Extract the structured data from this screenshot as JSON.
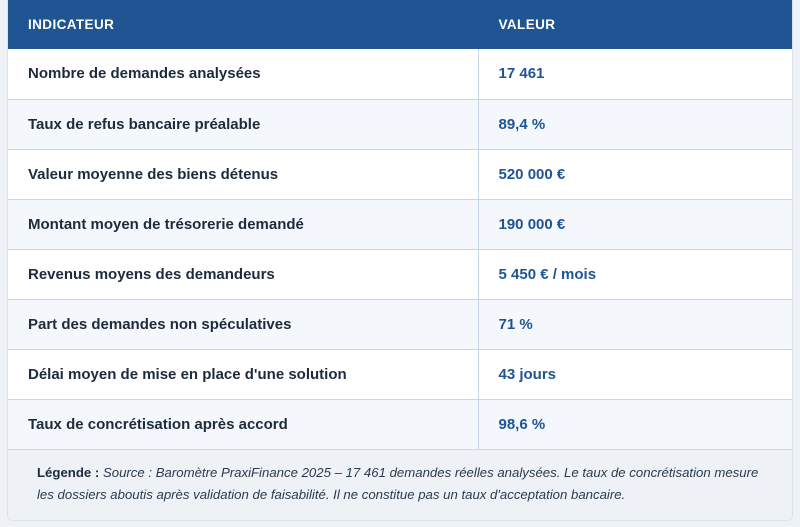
{
  "table": {
    "headers": [
      "INDICATEUR",
      "VALEUR"
    ],
    "rows": [
      {
        "indicator": "Nombre de demandes analysées",
        "value": "17 461"
      },
      {
        "indicator": "Taux de refus bancaire préalable",
        "value": "89,4 %"
      },
      {
        "indicator": "Valeur moyenne des biens détenus",
        "value": "520 000 €"
      },
      {
        "indicator": "Montant moyen de trésorerie demandé",
        "value": "190 000 €"
      },
      {
        "indicator": "Revenus moyens des demandeurs",
        "value": "5 450 € / mois"
      },
      {
        "indicator": "Part des demandes non spéculatives",
        "value": "71 %"
      },
      {
        "indicator": "Délai moyen de mise en place d'une solution",
        "value": "43 jours"
      },
      {
        "indicator": "Taux de concrétisation après accord",
        "value": "98,6 %"
      }
    ]
  },
  "legend": {
    "label": "Légende :",
    "text": "Source : Baromètre PraxiFinance 2025 – 17 461 demandes réelles analysées. Le taux de concrétisation mesure les dossiers aboutis après validation de faisabilité. Il ne constitue pas un taux d'acceptation bancaire."
  },
  "colors": {
    "header_bg": "#1f5592",
    "value_text": "#1f5592",
    "row_alt_bg": "#f4f7fb",
    "legend_bg": "#eef2f7"
  }
}
